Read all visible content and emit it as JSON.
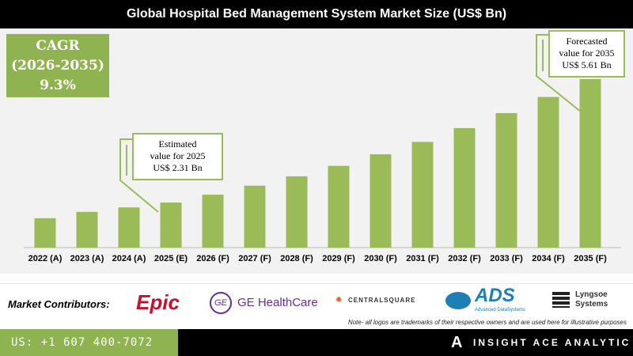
{
  "title": "Global Hospital Bed Management System Market Size (US$ Bn)",
  "cagr": {
    "label": "CAGR",
    "period": "(2026-2035)",
    "value": "9.3%"
  },
  "callout_2025": {
    "line1": "Estimated",
    "line2": "value for 2025",
    "line3": "US$ 2.31 Bn"
  },
  "callout_2035": {
    "line1": "Forecasted",
    "line2": "value for 2035",
    "line3": "US$ 5.61 Bn"
  },
  "chart_data": {
    "type": "bar",
    "title": "Global Hospital Bed Management System Market Size (US$ Bn)",
    "categories": [
      "2022 (A)",
      "2023 (A)",
      "2024 (A)",
      "2025 (E)",
      "2026 (F)",
      "2027 (F)",
      "2028 (F)",
      "2029 (F)",
      "2030 (F)",
      "2031 (F)",
      "2032 (F)",
      "2033 (F)",
      "2034 (F)",
      "2035 (F)"
    ],
    "values": [
      1.89,
      2.06,
      2.18,
      2.31,
      2.52,
      2.76,
      3.01,
      3.29,
      3.6,
      3.93,
      4.3,
      4.7,
      5.13,
      5.61
    ],
    "bar_color": "#9bbb59",
    "grid": false
  },
  "logos": {
    "label": "Market Contributors:",
    "epic": "Epic",
    "ge": "GE HealthCare",
    "central": "CENTRALSQUARE",
    "ads": "ADS",
    "ads_sub": "Advanced DataSystems",
    "lyngsoe1": "Lyngsoe",
    "lyngsoe2": "Systems",
    "note": "Note- all logos are trademarks of their respective owners and are used here for illustrative purposes"
  },
  "footer": {
    "phone": "US: +1 607 400-7072",
    "brand": "INSIGHT ACE ANALYTIC"
  },
  "colors": {
    "accent": "#8fb350",
    "bar": "#9bbb59"
  }
}
